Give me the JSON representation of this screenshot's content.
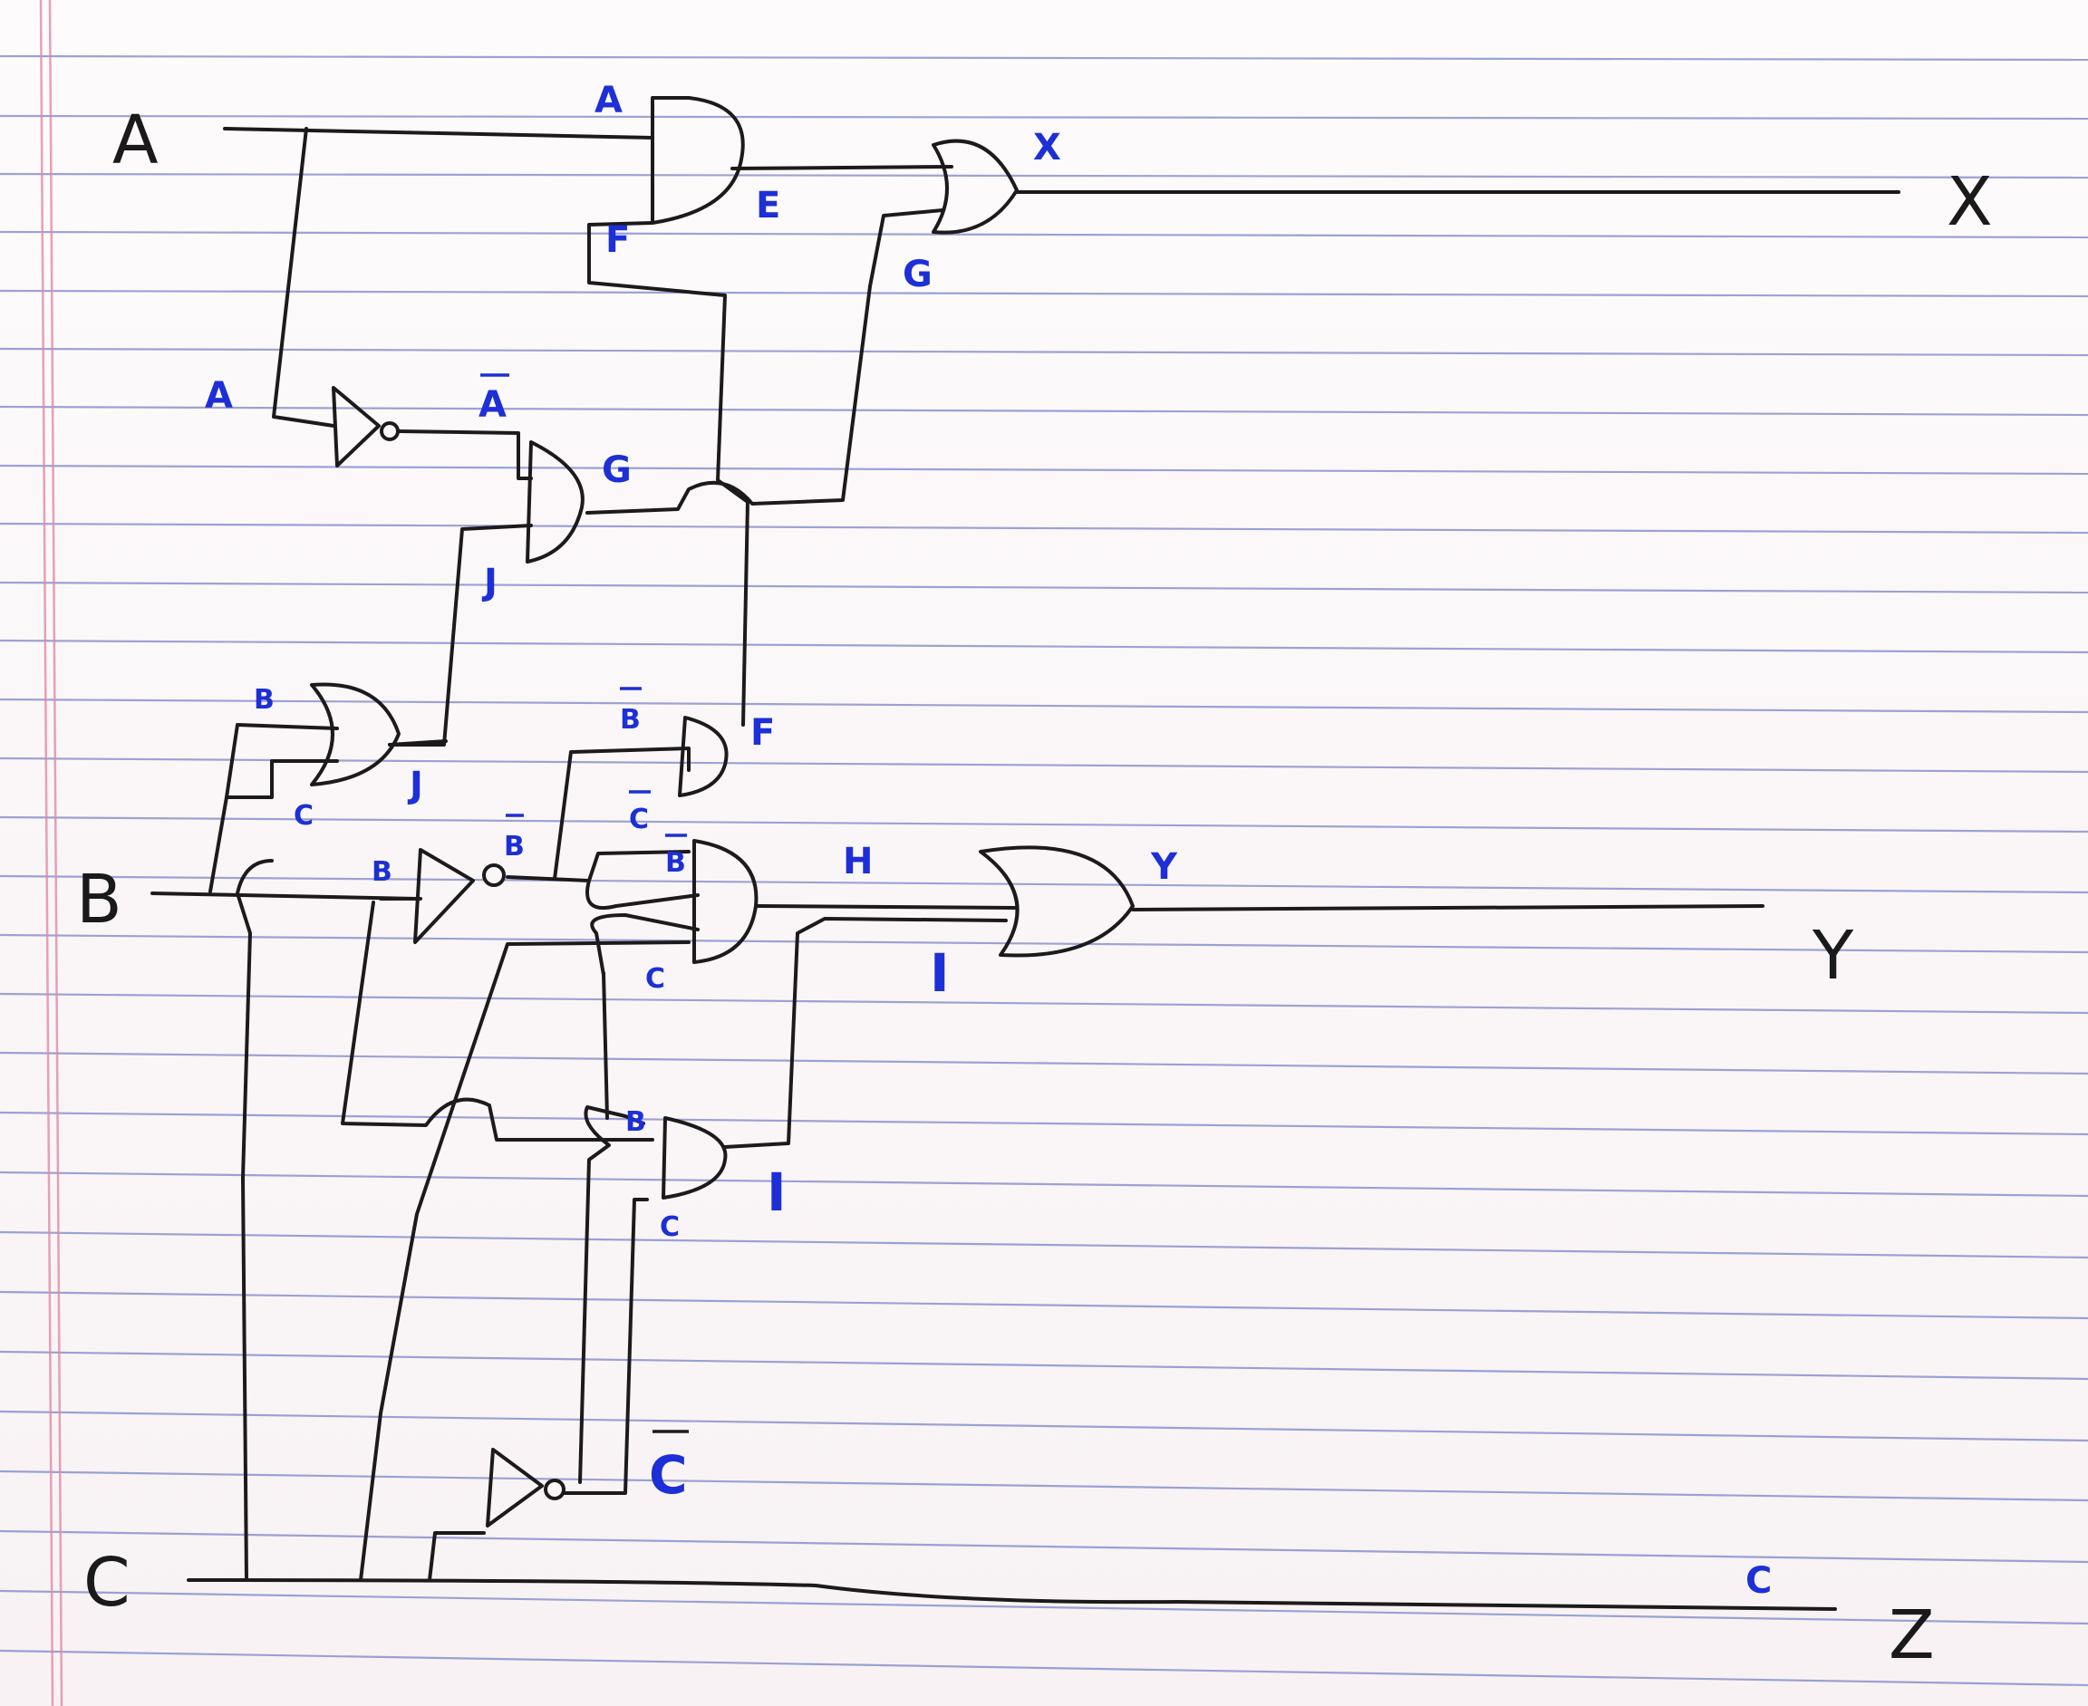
{
  "inputs": {
    "a": "A",
    "b": "B",
    "c": "C"
  },
  "outputs": {
    "x": "X",
    "y": "Y",
    "z": "Z"
  },
  "gate_labels": {
    "and_top_in_a": "A",
    "and_top_in_f": "F",
    "and_top_out_e": "E",
    "or_top_out_x": "X",
    "or_top_in_g": "G",
    "not_a_in": "A",
    "not_a_out": "A",
    "and_mid_out_g": "G",
    "and_mid_in_j": "J",
    "or_left_in_b": "B",
    "or_left_in_c": "C",
    "or_left_out_j": "J",
    "not_b_in": "B",
    "not_b_out": "B",
    "and_f_in_b": "B",
    "and_f_in_c": "C",
    "and_f_out_f": "F",
    "and_h_in_b": "B",
    "and_h_in_c": "C",
    "and_h_out_h": "H",
    "or_y_in_i": "I",
    "or_y_out_y": "Y",
    "and_i_in_b": "B",
    "and_i_in_c": "C",
    "and_i_out_i": "I",
    "not_c_out": "C",
    "z_wire_c": "C"
  },
  "colors": {
    "ink": "#1c1a1a",
    "label_blue": "#1d2fd6",
    "rule_blue": "#7a86c9",
    "margin_pink": "#e28aa6"
  }
}
